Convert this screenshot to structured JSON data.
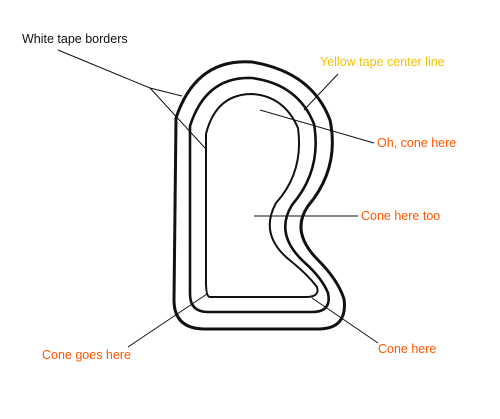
{
  "labels": {
    "white_tape_borders": "White tape borders",
    "yellow_tape_center_line": "Yellow tape center line",
    "oh_cone_here": "Oh, cone here",
    "cone_here_too": "Cone here too",
    "cone_here": "Cone here",
    "cone_goes_here": "Cone goes here"
  },
  "colors": {
    "background": "#ffffff",
    "track_stroke": "#111111",
    "white_label": "#111111",
    "yellow_label": "#f5c000",
    "cone_label": "#ff5500"
  }
}
